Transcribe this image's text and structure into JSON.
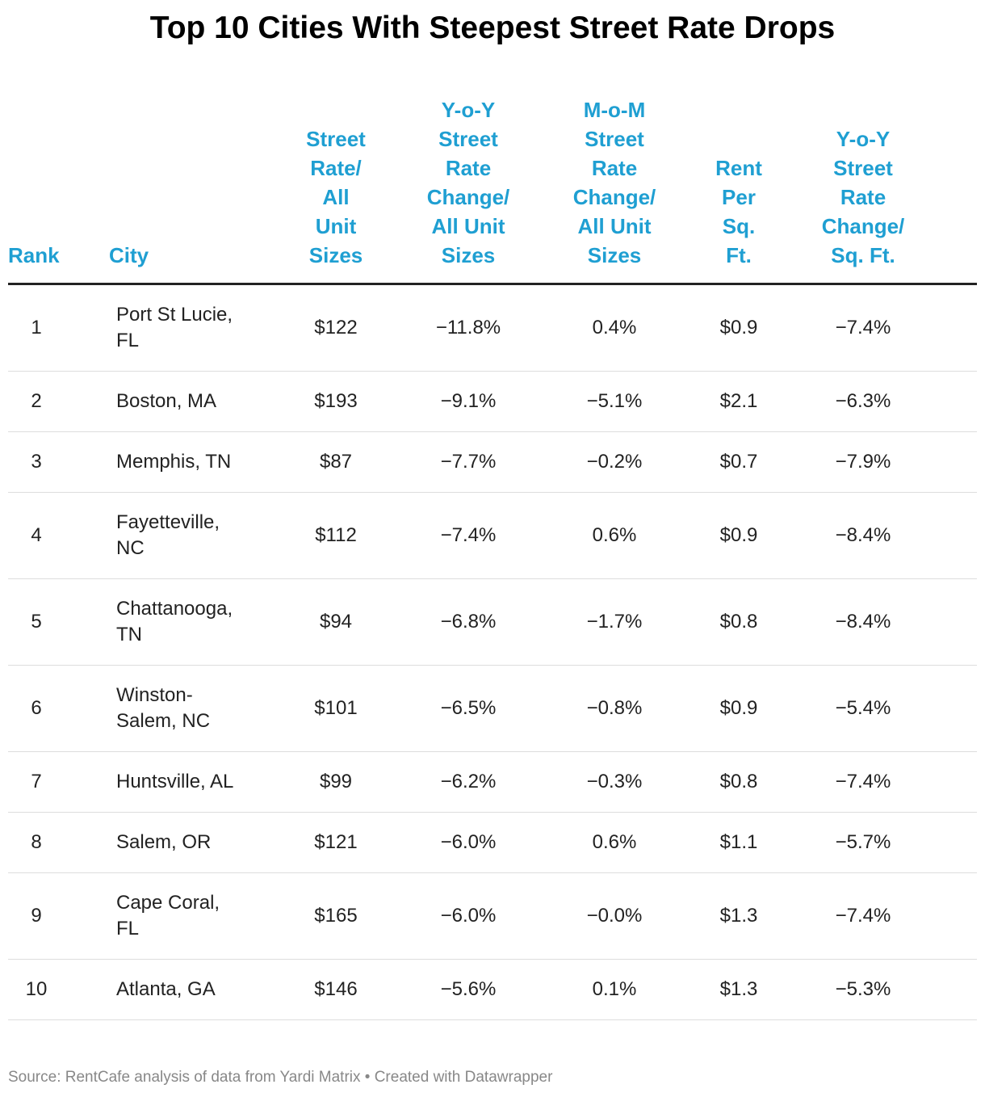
{
  "title": "Top 10 Cities With Steepest Street Rate Drops",
  "columns": [
    "Rank",
    "City",
    "Street Rate/ All Unit Sizes",
    "Y-o-Y Street Rate Change/ All Unit Sizes",
    "M-o-M Street Rate Change/ All Unit Sizes",
    "Rent Per Sq. Ft.",
    "Y-o-Y Street Rate Change/ Sq. Ft."
  ],
  "rows": [
    [
      1,
      "Port St Lucie, FL",
      "$122",
      "−11.8%",
      "0.4%",
      "$0.9",
      "−7.4%"
    ],
    [
      2,
      "Boston, MA",
      "$193",
      "−9.1%",
      "−5.1%",
      "$2.1",
      "−6.3%"
    ],
    [
      3,
      "Memphis, TN",
      "$87",
      "−7.7%",
      "−0.2%",
      "$0.7",
      "−7.9%"
    ],
    [
      4,
      "Fayetteville, NC",
      "$112",
      "−7.4%",
      "0.6%",
      "$0.9",
      "−8.4%"
    ],
    [
      5,
      "Chattanooga, TN",
      "$94",
      "−6.8%",
      "−1.7%",
      "$0.8",
      "−8.4%"
    ],
    [
      6,
      "Winston-Salem, NC",
      "$101",
      "−6.5%",
      "−0.8%",
      "$0.9",
      "−5.4%"
    ],
    [
      7,
      "Huntsville, AL",
      "$99",
      "−6.2%",
      "−0.3%",
      "$0.8",
      "−7.4%"
    ],
    [
      8,
      "Salem, OR",
      "$121",
      "−6.0%",
      "0.6%",
      "$1.1",
      "−5.7%"
    ],
    [
      9,
      "Cape Coral, FL",
      "$165",
      "−6.0%",
      "−0.0%",
      "$1.3",
      "−7.4%"
    ],
    [
      10,
      "Atlanta, GA",
      "$146",
      "−5.6%",
      "0.1%",
      "$1.3",
      "−5.3%"
    ]
  ],
  "source": "Source: RentCafe analysis of data from Yardi Matrix • Created with Datawrapper"
}
